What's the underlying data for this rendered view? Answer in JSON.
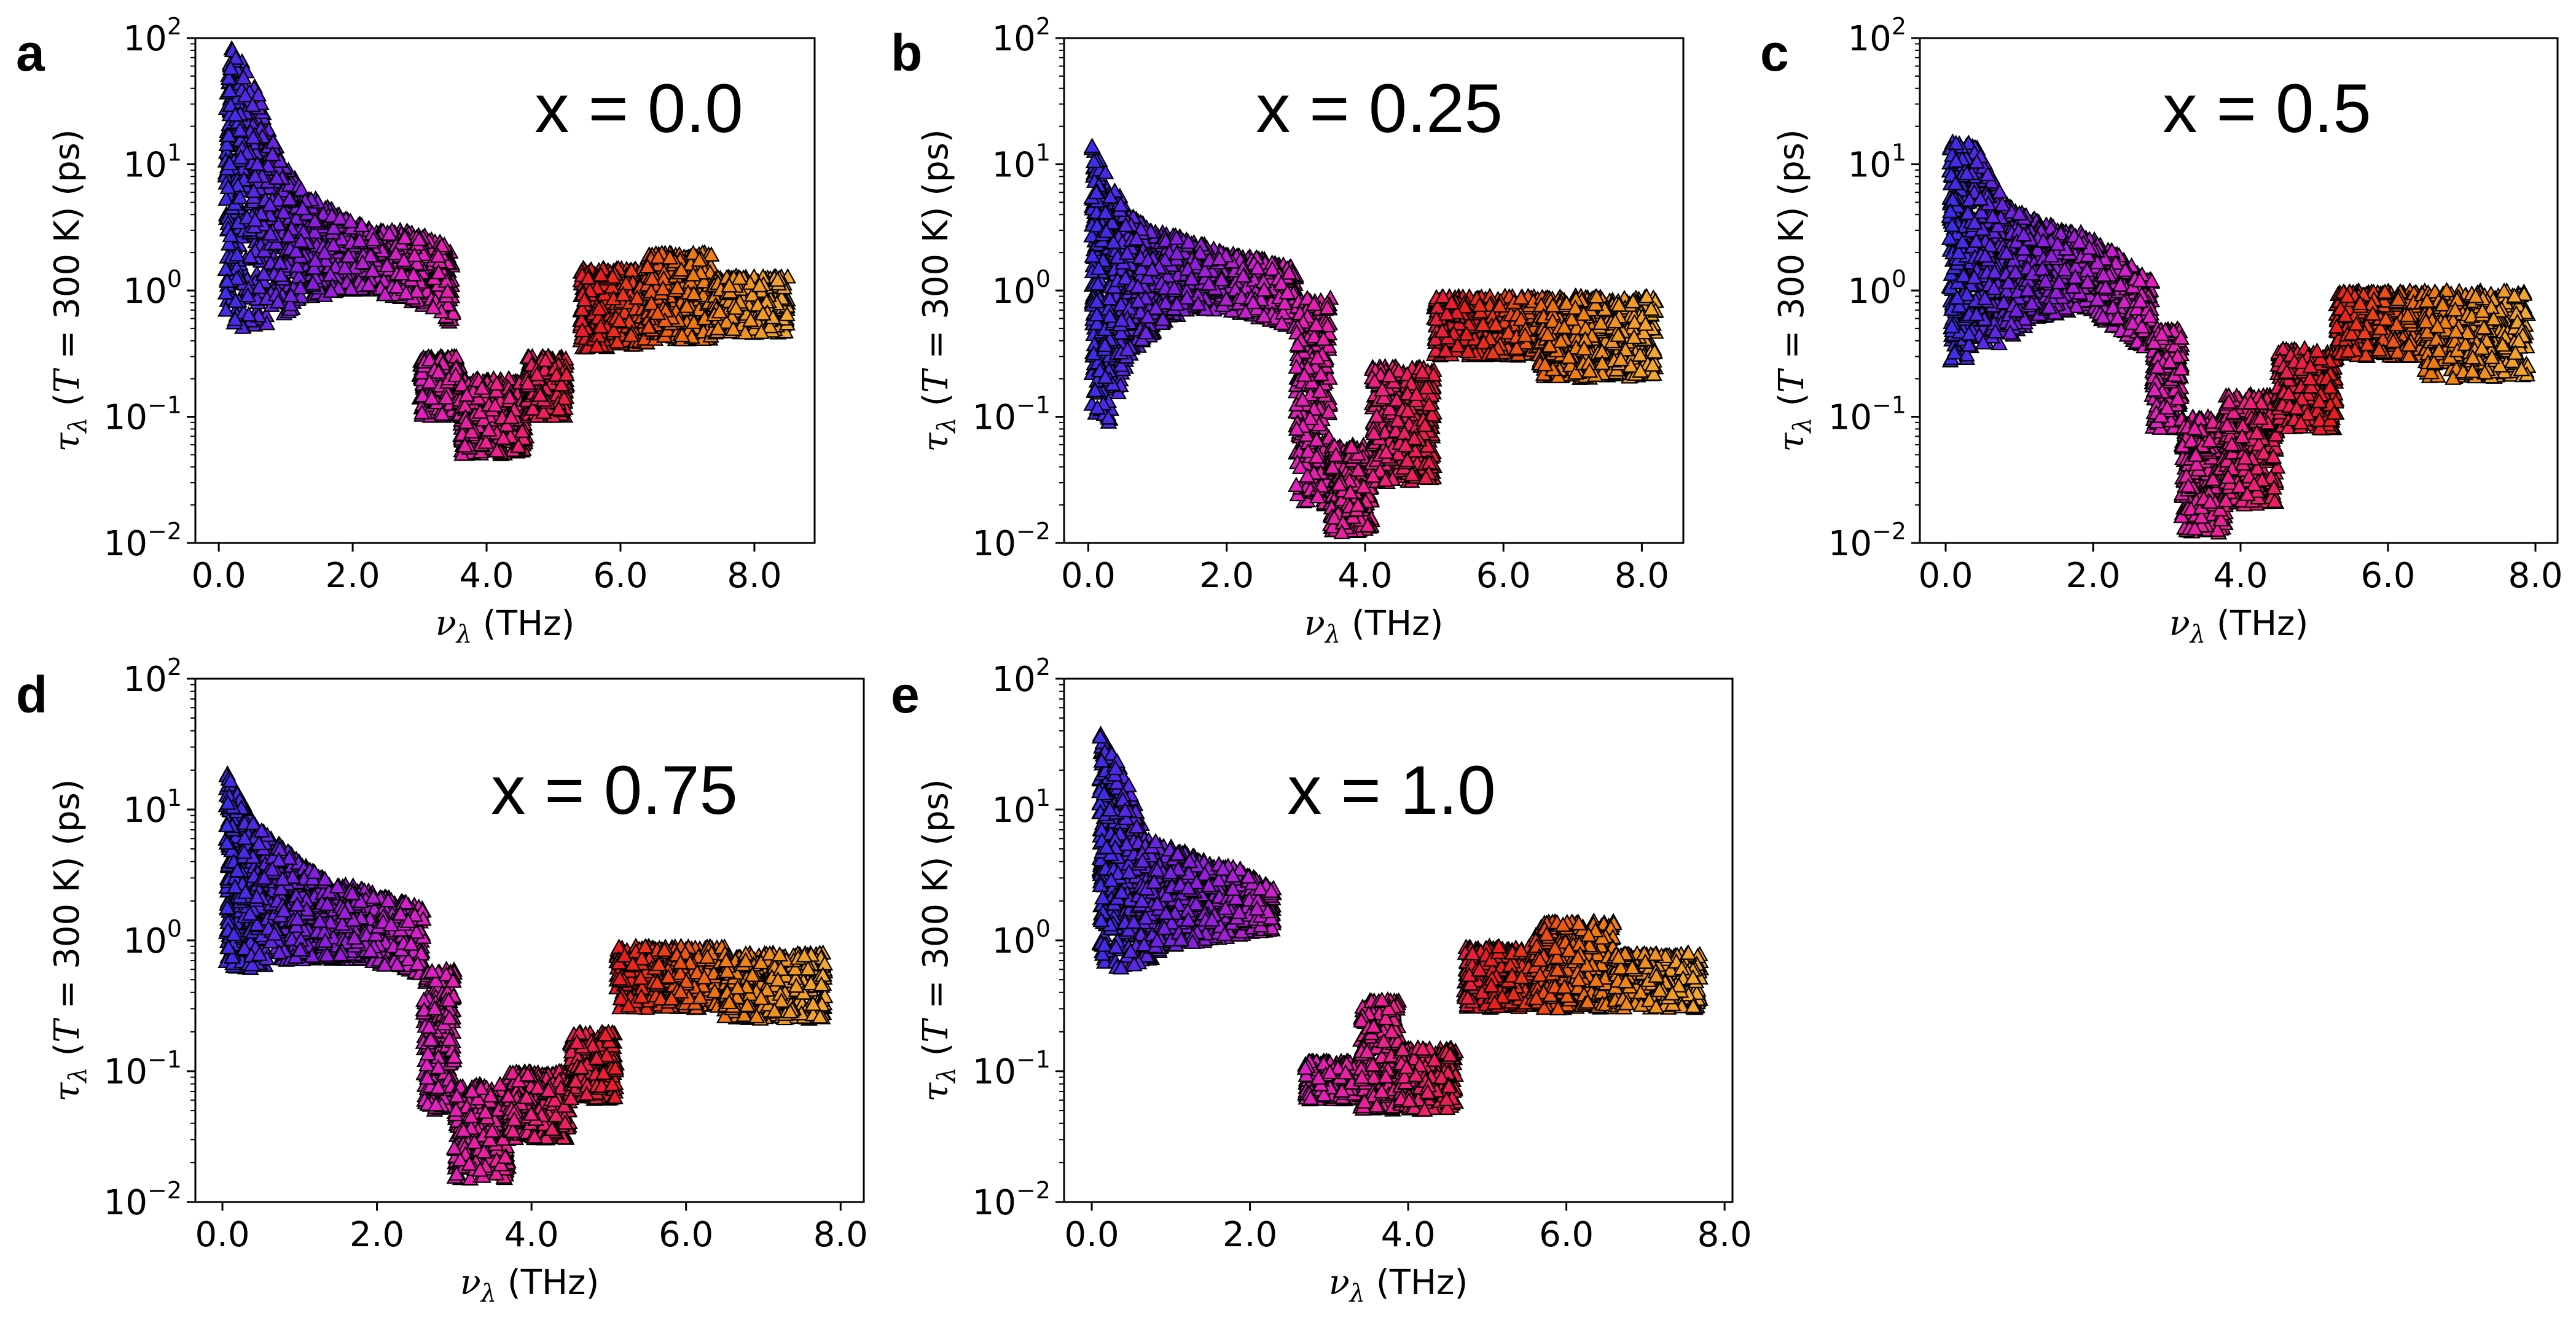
{
  "figure": {
    "x_label_symbol": "ν",
    "x_label_sub": "λ",
    "x_label_unit": " (THz)",
    "y_label_symbol": "τ",
    "y_label_sub": "λ",
    "y_label_open": " (",
    "y_label_T": "T",
    "y_label_rest": " = 300 K) (ps)",
    "y_tick_base": "10",
    "marker": "triangle",
    "marker_edge_color": "#000000",
    "colormap_stops": [
      "#3a2ee8",
      "#8a1ee0",
      "#e020c8",
      "#f0208a",
      "#e81e1e",
      "#f07a10",
      "#f2a830"
    ]
  },
  "chart_data": [
    {
      "type": "scatter",
      "panel": "a",
      "annotation": "x = 0.0",
      "xlim": [
        -0.35,
        8.9
      ],
      "ylim_log10": [
        -2,
        2
      ],
      "x_ticks": [
        "0.0",
        "2.0",
        "4.0",
        "6.0",
        "8.0"
      ],
      "x_tick_values": [
        0,
        2,
        4,
        6,
        8
      ],
      "y_tick_exponents": [
        "−2",
        "−1",
        "0",
        "1",
        "2"
      ],
      "envelope": [
        {
          "nu": 0.1,
          "lo": 0.6,
          "hi": 90
        },
        {
          "nu": 0.3,
          "lo": 0.5,
          "hi": 80
        },
        {
          "nu": 0.6,
          "lo": 0.5,
          "hi": 35
        },
        {
          "nu": 0.9,
          "lo": 0.6,
          "hi": 12
        },
        {
          "nu": 1.3,
          "lo": 0.8,
          "hi": 6
        },
        {
          "nu": 1.8,
          "lo": 1.0,
          "hi": 4
        },
        {
          "nu": 2.3,
          "lo": 1.0,
          "hi": 3
        },
        {
          "nu": 2.8,
          "lo": 0.8,
          "hi": 3
        },
        {
          "nu": 3.3,
          "lo": 0.7,
          "hi": 2.5
        },
        {
          "nu": 3.5,
          "lo": 0.5,
          "hi": 2
        }
      ],
      "segments": [
        {
          "from": 3.0,
          "to": 3.6,
          "lo": 0.1,
          "hi": 0.3
        },
        {
          "from": 3.6,
          "to": 4.6,
          "lo": 0.05,
          "hi": 0.2
        },
        {
          "from": 4.6,
          "to": 5.2,
          "lo": 0.1,
          "hi": 0.3
        },
        {
          "from": 5.4,
          "to": 6.4,
          "lo": 0.35,
          "hi": 1.5
        },
        {
          "from": 6.4,
          "to": 7.4,
          "lo": 0.4,
          "hi": 2.0
        },
        {
          "from": 7.4,
          "to": 8.5,
          "lo": 0.45,
          "hi": 1.3
        }
      ]
    },
    {
      "type": "scatter",
      "panel": "b",
      "annotation": "x = 0.25",
      "xlim": [
        -0.35,
        8.6
      ],
      "ylim_log10": [
        -2,
        2
      ],
      "x_ticks": [
        "0.0",
        "2.0",
        "4.0",
        "6.0",
        "8.0"
      ],
      "x_tick_values": [
        0,
        2,
        4,
        6,
        8
      ],
      "y_tick_exponents": [
        "−2",
        "−1",
        "0",
        "1",
        "2"
      ],
      "envelope": [
        {
          "nu": 0.05,
          "lo": 0.1,
          "hi": 15
        },
        {
          "nu": 0.3,
          "lo": 0.08,
          "hi": 8
        },
        {
          "nu": 0.6,
          "lo": 0.3,
          "hi": 4
        },
        {
          "nu": 1.0,
          "lo": 0.5,
          "hi": 3
        },
        {
          "nu": 1.5,
          "lo": 0.7,
          "hi": 2.5
        },
        {
          "nu": 2.0,
          "lo": 0.7,
          "hi": 2
        },
        {
          "nu": 2.5,
          "lo": 0.6,
          "hi": 1.8
        },
        {
          "nu": 3.0,
          "lo": 0.5,
          "hi": 1.5
        }
      ],
      "segments": [
        {
          "from": 3.0,
          "to": 3.5,
          "lo": 0.02,
          "hi": 0.9
        },
        {
          "from": 3.5,
          "to": 4.1,
          "lo": 0.012,
          "hi": 0.06
        },
        {
          "from": 4.1,
          "to": 5.0,
          "lo": 0.03,
          "hi": 0.25
        },
        {
          "from": 5.0,
          "to": 6.5,
          "lo": 0.3,
          "hi": 0.9
        },
        {
          "from": 6.5,
          "to": 8.2,
          "lo": 0.2,
          "hi": 0.9
        }
      ]
    },
    {
      "type": "scatter",
      "panel": "c",
      "annotation": "x = 0.5",
      "xlim": [
        -0.35,
        8.3
      ],
      "ylim_log10": [
        -2,
        2
      ],
      "x_ticks": [
        "0.0",
        "2.0",
        "4.0",
        "6.0",
        "8.0"
      ],
      "x_tick_values": [
        0,
        2,
        4,
        6,
        8
      ],
      "y_tick_exponents": [
        "−2",
        "−1",
        "0",
        "1",
        "2"
      ],
      "envelope": [
        {
          "nu": 0.05,
          "lo": 0.25,
          "hi": 17
        },
        {
          "nu": 0.4,
          "lo": 0.3,
          "hi": 15
        },
        {
          "nu": 0.8,
          "lo": 0.4,
          "hi": 5
        },
        {
          "nu": 1.3,
          "lo": 0.6,
          "hi": 3.5
        },
        {
          "nu": 1.8,
          "lo": 0.7,
          "hi": 3
        },
        {
          "nu": 2.3,
          "lo": 0.5,
          "hi": 2
        },
        {
          "nu": 2.8,
          "lo": 0.3,
          "hi": 1.2
        }
      ],
      "segments": [
        {
          "from": 2.8,
          "to": 3.2,
          "lo": 0.08,
          "hi": 0.5
        },
        {
          "from": 3.2,
          "to": 3.8,
          "lo": 0.012,
          "hi": 0.1
        },
        {
          "from": 3.8,
          "to": 4.5,
          "lo": 0.02,
          "hi": 0.15
        },
        {
          "from": 4.5,
          "to": 5.3,
          "lo": 0.08,
          "hi": 0.35
        },
        {
          "from": 5.3,
          "to": 6.5,
          "lo": 0.3,
          "hi": 1.0
        },
        {
          "from": 6.5,
          "to": 7.9,
          "lo": 0.2,
          "hi": 1.0
        }
      ]
    },
    {
      "type": "scatter",
      "panel": "d",
      "annotation": "x = 0.75",
      "xlim": [
        -0.35,
        8.3
      ],
      "ylim_log10": [
        -2,
        2
      ],
      "x_ticks": [
        "0.0",
        "2.0",
        "4.0",
        "6.0",
        "8.0"
      ],
      "x_tick_values": [
        0,
        2,
        4,
        6,
        8
      ],
      "y_tick_exponents": [
        "−2",
        "−1",
        "0",
        "1",
        "2"
      ],
      "envelope": [
        {
          "nu": 0.05,
          "lo": 0.6,
          "hi": 20
        },
        {
          "nu": 0.4,
          "lo": 0.6,
          "hi": 8
        },
        {
          "nu": 0.8,
          "lo": 0.7,
          "hi": 5
        },
        {
          "nu": 1.3,
          "lo": 0.7,
          "hi": 3
        },
        {
          "nu": 1.8,
          "lo": 0.7,
          "hi": 2.5
        },
        {
          "nu": 2.3,
          "lo": 0.6,
          "hi": 2
        },
        {
          "nu": 2.6,
          "lo": 0.5,
          "hi": 1.8
        }
      ],
      "segments": [
        {
          "from": 2.6,
          "to": 3.0,
          "lo": 0.05,
          "hi": 0.6
        },
        {
          "from": 3.0,
          "to": 3.7,
          "lo": 0.015,
          "hi": 0.08
        },
        {
          "from": 3.7,
          "to": 4.5,
          "lo": 0.03,
          "hi": 0.1
        },
        {
          "from": 4.5,
          "to": 5.1,
          "lo": 0.06,
          "hi": 0.2
        },
        {
          "from": 5.1,
          "to": 6.5,
          "lo": 0.3,
          "hi": 0.9
        },
        {
          "from": 6.5,
          "to": 7.8,
          "lo": 0.25,
          "hi": 0.8
        }
      ]
    },
    {
      "type": "scatter",
      "panel": "e",
      "annotation": "x = 1.0",
      "xlim": [
        -0.35,
        8.1
      ],
      "ylim_log10": [
        -2,
        2
      ],
      "x_ticks": [
        "0.0",
        "2.0",
        "4.0",
        "6.0",
        "8.0"
      ],
      "x_tick_values": [
        0,
        2,
        4,
        6,
        8
      ],
      "y_tick_exponents": [
        "−2",
        "−1",
        "0",
        "1",
        "2"
      ],
      "envelope": [
        {
          "nu": 0.1,
          "lo": 0.6,
          "hi": 40
        },
        {
          "nu": 0.4,
          "lo": 0.6,
          "hi": 20
        },
        {
          "nu": 0.7,
          "lo": 0.7,
          "hi": 6
        },
        {
          "nu": 1.1,
          "lo": 0.9,
          "hi": 5
        },
        {
          "nu": 1.5,
          "lo": 1.0,
          "hi": 4
        },
        {
          "nu": 1.9,
          "lo": 1.1,
          "hi": 3.5
        },
        {
          "nu": 2.3,
          "lo": 1.2,
          "hi": 2.5
        }
      ],
      "segments": [
        {
          "from": 2.7,
          "to": 3.4,
          "lo": 0.06,
          "hi": 0.12
        },
        {
          "from": 3.4,
          "to": 3.9,
          "lo": 0.05,
          "hi": 0.35
        },
        {
          "from": 3.9,
          "to": 4.6,
          "lo": 0.05,
          "hi": 0.15
        },
        {
          "from": 4.7,
          "to": 5.6,
          "lo": 0.3,
          "hi": 0.9
        },
        {
          "from": 5.6,
          "to": 6.6,
          "lo": 0.3,
          "hi": 1.4
        },
        {
          "from": 6.6,
          "to": 7.7,
          "lo": 0.3,
          "hi": 0.8
        }
      ]
    }
  ]
}
